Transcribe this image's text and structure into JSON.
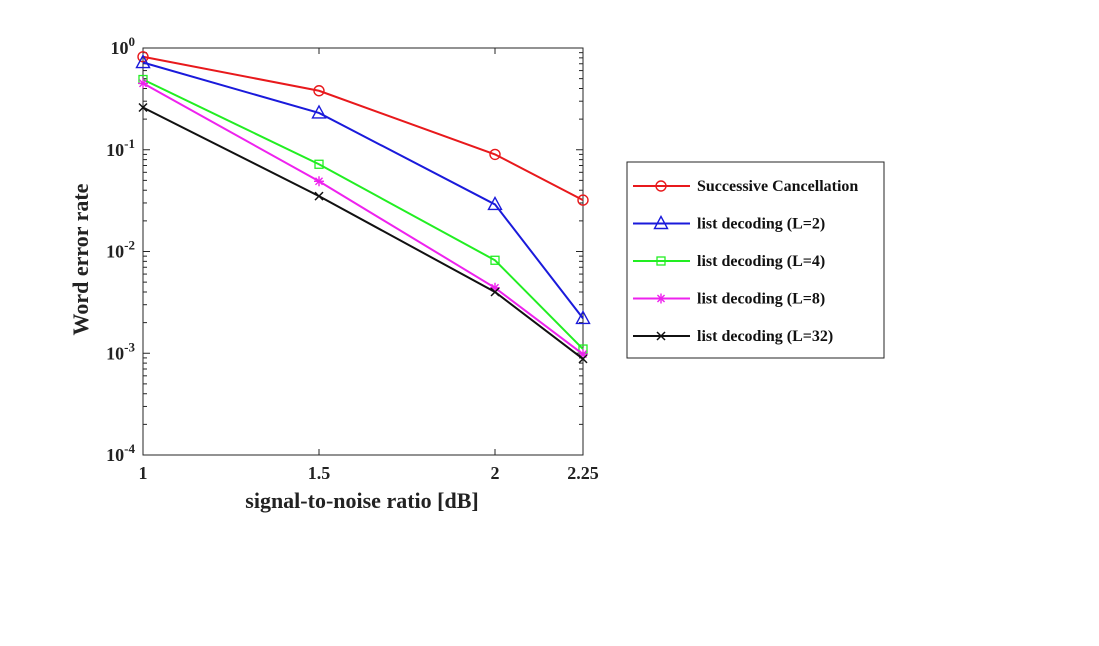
{
  "chart_data": {
    "type": "line",
    "xlabel": "signal-to-noise ratio [dB]",
    "ylabel": "Word error rate",
    "yscale": "log",
    "xlim": [
      1,
      2.25
    ],
    "ylim": [
      0.0001,
      1
    ],
    "x_ticks": [
      {
        "value": 1,
        "label": "1"
      },
      {
        "value": 1.5,
        "label": "1.5"
      },
      {
        "value": 2,
        "label": "2"
      },
      {
        "value": 2.25,
        "label": "2.25"
      }
    ],
    "y_ticks": [
      {
        "value": 1,
        "base": "10",
        "exp": "0"
      },
      {
        "value": 0.1,
        "base": "10",
        "exp": "-1"
      },
      {
        "value": 0.01,
        "base": "10",
        "exp": "-2"
      },
      {
        "value": 0.001,
        "base": "10",
        "exp": "-3"
      },
      {
        "value": 0.0001,
        "base": "10",
        "exp": "-4"
      }
    ],
    "legend_position": "outside right",
    "grid": false,
    "x": [
      1,
      1.5,
      2,
      2.25
    ],
    "series": [
      {
        "name": "Successive Cancellation",
        "color": "#e8191c",
        "marker": "circle",
        "values": [
          0.82,
          0.38,
          0.09,
          0.032
        ]
      },
      {
        "name": "list decoding (L=2)",
        "color": "#1a1adb",
        "marker": "triangle",
        "values": [
          0.72,
          0.23,
          0.029,
          0.0022
        ]
      },
      {
        "name": "list decoding (L=4)",
        "color": "#22ee22",
        "marker": "square",
        "values": [
          0.49,
          0.072,
          0.0082,
          0.0011
        ]
      },
      {
        "name": "list decoding (L=8)",
        "color": "#ee22ee",
        "marker": "star",
        "values": [
          0.45,
          0.049,
          0.0044,
          0.00098
        ]
      },
      {
        "name": "list decoding (L=32)",
        "color": "#111111",
        "marker": "x",
        "values": [
          0.26,
          0.035,
          0.004,
          0.00088
        ]
      }
    ]
  }
}
